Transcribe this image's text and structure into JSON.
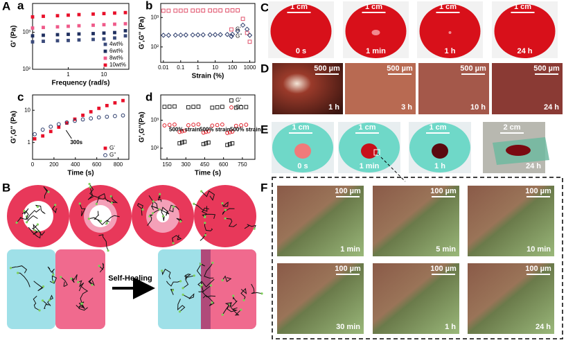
{
  "panel_labels": {
    "A": "A",
    "B": "B",
    "C": "C",
    "D": "D",
    "E": "E",
    "F": "F"
  },
  "chart_data": [
    {
      "type": "scatter",
      "label": "a",
      "x_label": "Frequency (rad/s)",
      "y_label": "G' (Pa)",
      "log_x": true,
      "log_y": true,
      "xlim": [
        0.1,
        50
      ],
      "ylim": [
        100,
        6000
      ],
      "xticks": [
        1,
        10
      ],
      "yticks": [
        {
          "value": 100,
          "label": "10²"
        },
        {
          "value": 1000,
          "label": "10³"
        }
      ],
      "legend": "lower right",
      "x": [
        0.1,
        0.2,
        0.5,
        1,
        2,
        5,
        10,
        20,
        40
      ],
      "series": [
        {
          "name": "4wt%",
          "color": "#3a4a7a",
          "marker": "square",
          "values": [
            550,
            570,
            590,
            600,
            620,
            640,
            660,
            700,
            800
          ]
        },
        {
          "name": "6wt%",
          "color": "#1f2f5f",
          "marker": "square",
          "values": [
            800,
            830,
            860,
            880,
            900,
            920,
            950,
            980,
            1100
          ]
        },
        {
          "name": "8wt%",
          "color": "#ef5a8a",
          "marker": "square",
          "values": [
            1300,
            1350,
            1400,
            1450,
            1500,
            1550,
            1600,
            1650,
            1700
          ]
        },
        {
          "name": "10wt%",
          "color": "#e8102a",
          "marker": "square",
          "values": [
            2600,
            2700,
            2800,
            2900,
            3000,
            3100,
            3200,
            3300,
            3400
          ]
        }
      ]
    },
    {
      "type": "scatter",
      "label": "b",
      "x_label": "Strain (%)",
      "y_label": "G',G'' (Pa)",
      "log_x": true,
      "log_y": true,
      "xlim": [
        0.007,
        2000
      ],
      "ylim": [
        30,
        3000
      ],
      "xticks": [
        0.01,
        0.1,
        1,
        10,
        100,
        1000
      ],
      "yticks": [
        {
          "value": 100,
          "label": "10²"
        },
        {
          "value": 1000,
          "label": "10³"
        }
      ],
      "legend": "center right",
      "x": [
        0.01,
        0.02,
        0.05,
        0.1,
        0.2,
        0.5,
        1,
        2,
        5,
        10,
        20,
        50,
        100,
        200,
        400,
        700,
        1000
      ],
      "series": [
        {
          "name": "G'",
          "color": "#e0506a",
          "marker": "square-open",
          "values": [
            1700,
            1700,
            1710,
            1710,
            1720,
            1720,
            1720,
            1730,
            1730,
            1730,
            1740,
            1740,
            1750,
            1750,
            900,
            300,
            150
          ]
        },
        {
          "name": "G''",
          "color": "#2a3a6a",
          "marker": "diamond-open",
          "values": [
            250,
            250,
            252,
            254,
            255,
            256,
            257,
            258,
            259,
            260,
            262,
            265,
            270,
            350,
            550,
            400,
            250
          ]
        }
      ]
    },
    {
      "type": "scatter",
      "label": "c",
      "x_label": "Time (s)",
      "y_label": "G',G'' (Pa)",
      "log_x": false,
      "log_y": true,
      "xlim": [
        0,
        900
      ],
      "ylim": [
        0.3,
        30
      ],
      "xticks": [
        0,
        200,
        400,
        600,
        800
      ],
      "yticks": [
        1,
        10
      ],
      "legend": "lower right",
      "annotation": "300s",
      "x": [
        20,
        95,
        170,
        245,
        320,
        395,
        470,
        545,
        620,
        695,
        770,
        845
      ],
      "series": [
        {
          "name": "G'",
          "color": "#e8102a",
          "marker": "square",
          "values": [
            1.3,
            1.6,
            2.2,
            3.0,
            4.0,
            5.3,
            7.0,
            9.0,
            11.5,
            14,
            17,
            20
          ]
        },
        {
          "name": "G''",
          "color": "#2a3a6a",
          "marker": "circle-open",
          "values": [
            1.8,
            2.5,
            3.1,
            3.7,
            4.2,
            4.7,
            5.2,
            5.6,
            6.0,
            6.3,
            6.6,
            6.9
          ]
        }
      ]
    },
    {
      "type": "scatter",
      "label": "d",
      "x_label": "Time (s)",
      "y_label": "G',G''(Pa)",
      "log_x": false,
      "log_y": true,
      "xlim": [
        100,
        850
      ],
      "ylim": [
        40,
        8000
      ],
      "xticks": [
        150,
        300,
        450,
        600,
        750
      ],
      "yticks": [
        {
          "value": 100,
          "label": "10²"
        },
        {
          "value": 1000,
          "label": "10³"
        }
      ],
      "legend": "upper right",
      "annotations": [
        "500% strain",
        "500% strain",
        "500% strain"
      ],
      "x": [
        130,
        170,
        210,
        250,
        270,
        290,
        320,
        360,
        400,
        440,
        460,
        480,
        510,
        550,
        590,
        630,
        650,
        670,
        700,
        740,
        780
      ],
      "series": [
        {
          "name": "G'",
          "color": "#222222",
          "marker": "square-open",
          "values": [
            3000,
            3050,
            3100,
            150,
            160,
            170,
            2900,
            3000,
            3050,
            140,
            150,
            160,
            2800,
            2900,
            3000,
            130,
            140,
            150,
            2800,
            2900,
            2950
          ]
        },
        {
          "name": "G''",
          "color": "#e0202a",
          "marker": "circle-open",
          "values": [
            650,
            680,
            700,
            380,
            400,
            420,
            660,
            690,
            710,
            360,
            380,
            400,
            640,
            670,
            700,
            350,
            370,
            390,
            630,
            660,
            690
          ]
        }
      ]
    }
  ],
  "schematic": {
    "arrow_label": "Self-Healing"
  },
  "photos": {
    "C": [
      {
        "scale": "1 cm",
        "time": "0 s"
      },
      {
        "scale": "1 cm",
        "time": "1 min"
      },
      {
        "scale": "1 cm",
        "time": "1 h"
      },
      {
        "scale": "1 cm",
        "time": "24 h"
      }
    ],
    "D": [
      {
        "scale": "500 µm",
        "time": "1 h"
      },
      {
        "scale": "500 µm",
        "time": "3 h"
      },
      {
        "scale": "500 µm",
        "time": "10 h"
      },
      {
        "scale": "500 µm",
        "time": "24 h"
      }
    ],
    "E": [
      {
        "scale": "1 cm",
        "time": "0 s"
      },
      {
        "scale": "1 cm",
        "time": "1 min"
      },
      {
        "scale": "1 cm",
        "time": "1 h"
      },
      {
        "scale": "2 cm",
        "time": "24 h"
      }
    ],
    "F": [
      {
        "scale": "100 µm",
        "time": "1 min"
      },
      {
        "scale": "100 µm",
        "time": "5 min"
      },
      {
        "scale": "100 µm",
        "time": "10 min"
      },
      {
        "scale": "100 µm",
        "time": "30 min"
      },
      {
        "scale": "100 µm",
        "time": "1 h"
      },
      {
        "scale": "100 µm",
        "time": "24 h"
      }
    ]
  }
}
